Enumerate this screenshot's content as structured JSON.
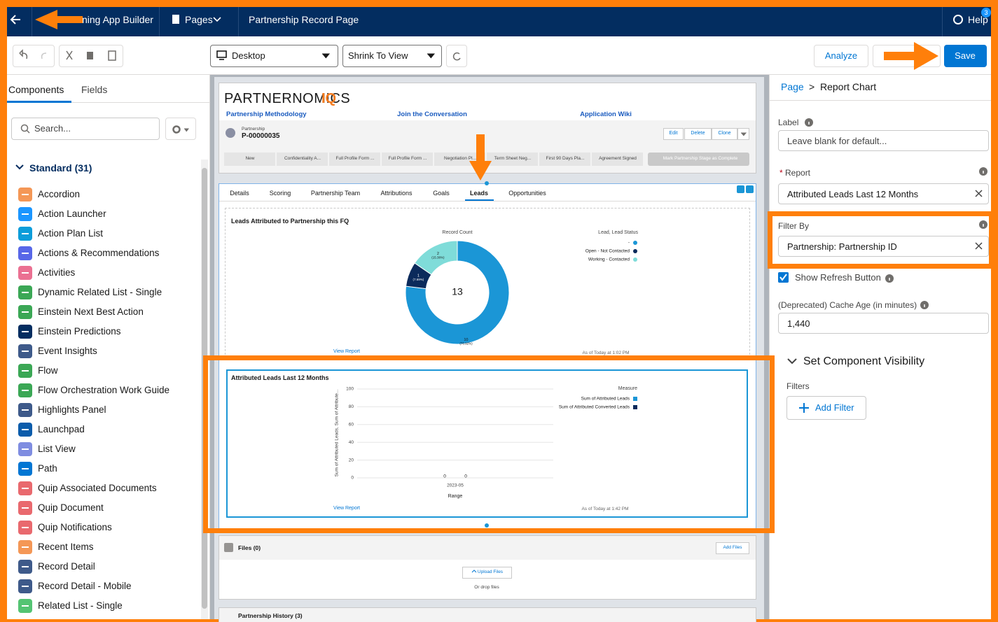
{
  "top_bar": {
    "app_name": "ning App Builder",
    "pages_menu": "Pages",
    "page_name": "Partnership Record Page",
    "help": "Help",
    "help_badge": "3"
  },
  "toolbar": {
    "device": "Desktop",
    "view_mode": "Shrink To View",
    "analyze": "Analyze",
    "save": "Save"
  },
  "left_panel": {
    "tabs": [
      "Components",
      "Fields"
    ],
    "search_placeholder": "Search...",
    "section": "Standard (31)",
    "components": [
      "Accordion",
      "Action Launcher",
      "Action Plan List",
      "Actions & Recommendations",
      "Activities",
      "Dynamic Related List - Single",
      "Einstein Next Best Action",
      "Einstein Predictions",
      "Event Insights",
      "Flow",
      "Flow Orchestration Work Guide",
      "Highlights Panel",
      "Launchpad",
      "List View",
      "Path",
      "Quip Associated Documents",
      "Quip Document",
      "Quip Notifications",
      "Recent Items",
      "Record Detail",
      "Record Detail - Mobile",
      "Related List - Single"
    ]
  },
  "canvas": {
    "brand": "PARTNERNOMICS",
    "brand_suffix": "IQ",
    "links": [
      "Partnership Methodology",
      "Join the Conversation",
      "Application Wiki"
    ],
    "record": {
      "object": "Partnership",
      "id": "P-00000035"
    },
    "actions": [
      "Edit",
      "Delete",
      "Clone"
    ],
    "stages": [
      "New",
      "Confidentiality A...",
      "Full Profile Form ...",
      "Full Profile Form ...",
      "Negotiation Pl...",
      "Term Sheet Neg...",
      "First 90 Days Pla...",
      "Agreement Signed"
    ],
    "complete_button": "Mark Partnership Stage as Complete",
    "tabs": [
      "Details",
      "Scoring",
      "Partnership Team",
      "Attributions",
      "Goals",
      "Leads",
      "Opportunities"
    ],
    "donut_chart": {
      "type": "donut",
      "title": "Leads Attributed to Partnership this FQ",
      "measure": "Record Count",
      "legend_title": "Lead, Lead Status",
      "total": 13,
      "slices": [
        {
          "name": "-",
          "value": 10,
          "percent_label": "(76.92%)",
          "color": "#1b96d6"
        },
        {
          "name": "Open - Not Contacted",
          "value": 1,
          "percent_label": "(7.69%)",
          "color": "#0b2a5b"
        },
        {
          "name": "Working - Contacted",
          "value": 2,
          "percent_label": "(15.38%)",
          "color": "#7fdcd9"
        }
      ],
      "footer_link": "View Report",
      "timestamp": "As of Today at 1:02 PM"
    },
    "bar_chart": {
      "type": "bar",
      "title": "Attributed Leads Last 12 Months",
      "y_title": "Sum of Attributed Leads, Sum of Attribute...",
      "x_title": "Range",
      "categories": [
        "2023-05"
      ],
      "ylim": [
        0,
        100
      ],
      "yticks": [
        0,
        20,
        40,
        60,
        80,
        100
      ],
      "legend_title": "Measure",
      "series": [
        {
          "name": "Sum of Attributed Leads",
          "color": "#1b96d6",
          "values": [
            0
          ]
        },
        {
          "name": "Sum of Attributed Converted Leads",
          "color": "#0b2a5b",
          "values": [
            0
          ]
        }
      ],
      "footer_link": "View Report",
      "timestamp": "As of Today at 1:42 PM"
    },
    "files": {
      "title": "Files (0)",
      "add_button": "Add Files",
      "upload_button": "Upload Files",
      "drop_hint": "Or drop files"
    },
    "history_title": "Partnership History (3)"
  },
  "right_panel": {
    "breadcrumb": {
      "parent": "Page",
      "separator": ">",
      "current": "Report Chart"
    },
    "label_field": {
      "label": "Label",
      "placeholder": "Leave blank for default..."
    },
    "report_field": {
      "required_mark": "*",
      "label": "Report",
      "value": "Attributed Leads Last 12 Months"
    },
    "filter_field": {
      "label": "Filter By",
      "value": "Partnership: Partnership ID"
    },
    "refresh_checkbox": "Show Refresh Button",
    "cache_field": {
      "label": "(Deprecated) Cache Age (in minutes)",
      "value": "1,440"
    },
    "visibility_section": "Set Component Visibility",
    "filters_label": "Filters",
    "add_filter": "Add Filter"
  }
}
